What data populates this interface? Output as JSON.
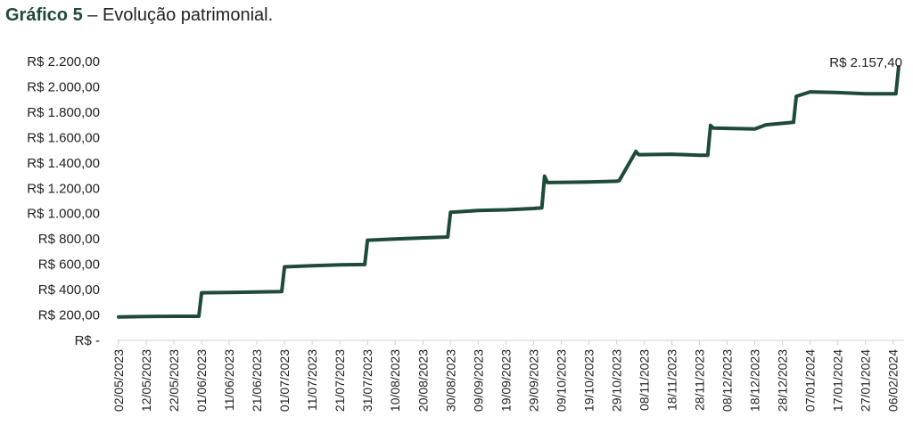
{
  "title": {
    "bold": "Gráfico 5",
    "rest": " – Evolução patrimonial."
  },
  "chart_data": {
    "type": "line",
    "title": "Gráfico 5 – Evolução patrimonial.",
    "xlabel": "",
    "ylabel": "",
    "ylim": [
      0,
      2200
    ],
    "y_ticks": [
      {
        "value": 0,
        "label": "R$ -"
      },
      {
        "value": 200,
        "label": "R$ 200,00"
      },
      {
        "value": 400,
        "label": "R$ 400,00"
      },
      {
        "value": 600,
        "label": "R$ 600,00"
      },
      {
        "value": 800,
        "label": "R$ 800,00"
      },
      {
        "value": 1000,
        "label": "R$ 1.000,00"
      },
      {
        "value": 1200,
        "label": "R$ 1.200,00"
      },
      {
        "value": 1400,
        "label": "R$ 1.400,00"
      },
      {
        "value": 1600,
        "label": "R$ 1.600,00"
      },
      {
        "value": 1800,
        "label": "R$ 1.800,00"
      },
      {
        "value": 2000,
        "label": "R$ 2.000,00"
      },
      {
        "value": 2200,
        "label": "R$ 2.200,00"
      }
    ],
    "x_tick_labels": [
      "02/05/2023",
      "12/05/2023",
      "22/05/2023",
      "01/06/2023",
      "11/06/2023",
      "21/06/2023",
      "01/07/2023",
      "11/07/2023",
      "21/07/2023",
      "31/07/2023",
      "10/08/2023",
      "20/08/2023",
      "30/08/2023",
      "09/09/2023",
      "19/09/2023",
      "29/09/2023",
      "09/10/2023",
      "19/10/2023",
      "29/10/2023",
      "08/11/2023",
      "18/11/2023",
      "28/11/2023",
      "08/12/2023",
      "18/12/2023",
      "28/12/2023",
      "07/01/2024",
      "17/01/2024",
      "27/01/2024",
      "06/02/2024"
    ],
    "grid": false,
    "legend": "none",
    "line_color": "#1e4a38",
    "annotation": {
      "text": "R$ 2.157,40",
      "x": "08/02/2024",
      "y": 2157.4
    },
    "series": [
      {
        "points": [
          [
            "02/05/2023",
            185
          ],
          [
            "12/05/2023",
            188
          ],
          [
            "22/05/2023",
            190
          ],
          [
            "31/05/2023",
            190
          ],
          [
            "01/06/2023",
            375
          ],
          [
            "11/06/2023",
            378
          ],
          [
            "21/06/2023",
            382
          ],
          [
            "30/06/2023",
            385
          ],
          [
            "01/07/2023",
            580
          ],
          [
            "11/07/2023",
            588
          ],
          [
            "21/07/2023",
            595
          ],
          [
            "30/07/2023",
            598
          ],
          [
            "31/07/2023",
            790
          ],
          [
            "10/08/2023",
            800
          ],
          [
            "20/08/2023",
            808
          ],
          [
            "29/08/2023",
            815
          ],
          [
            "30/08/2023",
            1010
          ],
          [
            "09/09/2023",
            1025
          ],
          [
            "19/09/2023",
            1030
          ],
          [
            "29/09/2023",
            1040
          ],
          [
            "02/10/2023",
            1045
          ],
          [
            "03/10/2023",
            1295
          ],
          [
            "04/10/2023",
            1245
          ],
          [
            "19/10/2023",
            1250
          ],
          [
            "29/10/2023",
            1255
          ],
          [
            "30/10/2023",
            1260
          ],
          [
            "05/11/2023",
            1490
          ],
          [
            "06/11/2023",
            1465
          ],
          [
            "18/11/2023",
            1468
          ],
          [
            "28/11/2023",
            1460
          ],
          [
            "01/12/2023",
            1460
          ],
          [
            "02/12/2023",
            1695
          ],
          [
            "03/12/2023",
            1675
          ],
          [
            "18/12/2023",
            1668
          ],
          [
            "22/12/2023",
            1700
          ],
          [
            "01/01/2024",
            1720
          ],
          [
            "02/01/2024",
            1925
          ],
          [
            "07/01/2024",
            1960
          ],
          [
            "17/01/2024",
            1955
          ],
          [
            "27/01/2024",
            1945
          ],
          [
            "07/02/2024",
            1945
          ],
          [
            "08/02/2024",
            2157.4
          ]
        ]
      }
    ]
  }
}
